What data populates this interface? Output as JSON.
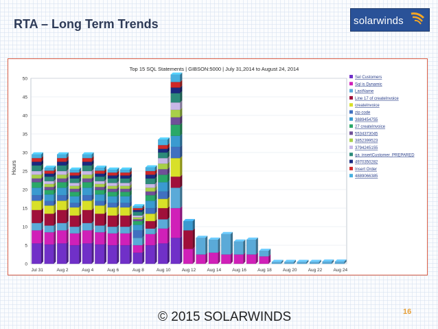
{
  "slide": {
    "title": "RTA – Long Term Trends",
    "logo_text": "solarwinds",
    "slide_number": "16",
    "footer": "© 2015 SOLARWINDS"
  },
  "colors": {
    "title": "#2d3a57",
    "frame_border": "#d55a43",
    "logo_bg": "#2a5298",
    "slide_number": "#e8a038"
  },
  "chart_data": {
    "type": "bar",
    "stacked": true,
    "title": "Top 15 SQL Statements   |   GIBSON:5000 | July 31,2014 to August 24, 2014",
    "xlabel": "",
    "ylabel": "Hours",
    "ylim": [
      0,
      50
    ],
    "yticks": [
      0,
      5,
      10,
      15,
      20,
      25,
      30,
      35,
      40,
      45,
      50
    ],
    "grid": true,
    "legend_position": "right",
    "x_tick_labels": [
      "Jul 31",
      "Aug 2",
      "Aug 4",
      "Aug 6",
      "Aug 8",
      "Aug 10",
      "Aug 12",
      "Aug 14",
      "Aug 16",
      "Aug 18",
      "Aug 20",
      "Aug 22",
      "Aug 24"
    ],
    "categories": [
      "Jul 31",
      "Aug 1",
      "Aug 2",
      "Aug 3",
      "Aug 4",
      "Aug 5",
      "Aug 6",
      "Aug 7",
      "Aug 8",
      "Aug 9",
      "Aug 10",
      "Aug 11",
      "Aug 12",
      "Aug 13",
      "Aug 14",
      "Aug 15",
      "Aug 16",
      "Aug 17",
      "Aug 18",
      "Aug 19",
      "Aug 20",
      "Aug 21",
      "Aug 22",
      "Aug 23",
      "Aug 24"
    ],
    "series": [
      {
        "name": "Sel Customers",
        "color": "#7030c8",
        "values": [
          5.5,
          5.2,
          5.5,
          5.0,
          5.5,
          5.2,
          5.0,
          5.0,
          3.0,
          5.0,
          5.5,
          7.0,
          0,
          0,
          0,
          0,
          0,
          0,
          0,
          0,
          0,
          0,
          0,
          0,
          0
        ]
      },
      {
        "name": "Sql is Dynamic",
        "color": "#d020b8",
        "values": [
          3.5,
          3.3,
          3.5,
          3.2,
          3.5,
          3.3,
          3.2,
          3.2,
          2.0,
          3.0,
          4.0,
          8.0,
          4.0,
          2.5,
          3.0,
          2.5,
          2.5,
          2.5,
          2.0,
          0,
          0,
          0,
          0,
          0,
          0
        ]
      },
      {
        "name": "LastName",
        "color": "#5aaad8",
        "values": [
          2.0,
          1.8,
          2.0,
          1.8,
          2.0,
          1.8,
          1.8,
          1.8,
          2.0,
          1.5,
          2.5,
          5.5,
          0,
          4.5,
          3.5,
          5.5,
          3.5,
          4.0,
          1.5,
          0.5,
          0.5,
          0.5,
          0.5,
          0.6,
          0.6
        ]
      },
      {
        "name": "Line 17 of createInvoice",
        "color": "#a0103a",
        "values": [
          3.5,
          3.2,
          3.5,
          3.0,
          3.5,
          3.2,
          3.0,
          3.0,
          0,
          2.0,
          3.0,
          3.0,
          5.0,
          0,
          0,
          0,
          0,
          0,
          0,
          0,
          0,
          0,
          0,
          0,
          0
        ]
      },
      {
        "name": "createInvoice",
        "color": "#d8e028",
        "values": [
          2.5,
          2.2,
          2.5,
          2.2,
          2.5,
          2.2,
          2.2,
          2.2,
          0,
          2.0,
          2.5,
          5.0,
          0,
          0,
          0,
          0,
          0,
          0,
          0,
          0,
          0,
          0,
          0,
          0,
          0
        ]
      },
      {
        "name": "zip code",
        "color": "#4070c0",
        "values": [
          1.5,
          1.2,
          1.5,
          1.2,
          1.5,
          1.2,
          1.2,
          1.2,
          2.0,
          1.5,
          2.0,
          3.0,
          0,
          0,
          0,
          0,
          0,
          0,
          0,
          0,
          0,
          0,
          0,
          0,
          0
        ]
      },
      {
        "name": "3889454755",
        "color": "#3a9ad0",
        "values": [
          2.0,
          1.8,
          2.0,
          1.8,
          2.0,
          1.8,
          1.8,
          1.8,
          1.5,
          2.0,
          2.5,
          3.0,
          2.5,
          0,
          0,
          0,
          0,
          0,
          0,
          0,
          0,
          0,
          0,
          0,
          0
        ]
      },
      {
        "name": "27 createInvoice",
        "color": "#2aa868",
        "values": [
          1.5,
          1.2,
          1.5,
          1.2,
          1.5,
          1.2,
          1.2,
          1.2,
          1.0,
          1.5,
          2.0,
          3.0,
          0,
          0,
          0,
          0,
          0,
          0,
          0,
          0,
          0,
          0,
          0,
          0,
          0
        ]
      },
      {
        "name": "5534373045",
        "color": "#705098",
        "values": [
          1.0,
          0.8,
          1.0,
          0.8,
          1.0,
          0.8,
          0.8,
          0.8,
          0.5,
          1.0,
          1.5,
          2.0,
          0,
          0,
          0,
          0,
          0,
          0,
          0,
          0,
          0,
          0,
          0,
          0,
          0
        ]
      },
      {
        "name": "3852399523",
        "color": "#a8d048",
        "values": [
          1.0,
          0.8,
          1.0,
          0.8,
          1.0,
          0.8,
          0.8,
          0.8,
          0.5,
          1.0,
          1.5,
          2.0,
          0,
          0,
          0,
          0,
          0,
          0,
          0,
          0,
          0,
          0,
          0,
          0,
          0
        ]
      },
      {
        "name": "3794245155",
        "color": "#c8b8e8",
        "values": [
          1.0,
          0.8,
          1.0,
          0.8,
          1.0,
          0.8,
          0.8,
          0.8,
          0.5,
          1.0,
          1.5,
          2.0,
          0,
          0,
          0,
          0,
          0,
          0,
          0,
          0,
          0,
          0,
          0,
          0,
          0
        ]
      },
      {
        "name": "qa_insertCustomer_PREPARED",
        "color": "#2c8a7a",
        "values": [
          1.5,
          1.2,
          1.5,
          1.2,
          1.5,
          1.2,
          1.2,
          1.2,
          1.0,
          1.5,
          1.5,
          2.5,
          0,
          0,
          0,
          0,
          0,
          0,
          0,
          0,
          0,
          0,
          0,
          0,
          0
        ]
      },
      {
        "name": "4970350282",
        "color": "#1a2a80",
        "values": [
          1.0,
          0.8,
          1.0,
          0.8,
          1.0,
          0.8,
          0.8,
          0.8,
          0.5,
          1.0,
          1.0,
          1.5,
          0,
          0,
          0,
          0,
          0,
          0,
          0,
          0,
          0,
          0,
          0,
          0,
          0
        ]
      },
      {
        "name": "Insert Order",
        "color": "#d02828",
        "values": [
          1.0,
          0.8,
          1.0,
          0.8,
          1.0,
          0.8,
          0.8,
          0.8,
          0.5,
          1.0,
          1.0,
          1.5,
          0,
          0,
          0,
          0,
          0,
          0,
          0,
          0,
          0,
          0,
          0,
          0,
          0
        ]
      },
      {
        "name": "4889066385",
        "color": "#48b0e0",
        "values": [
          1.0,
          0.8,
          1.0,
          0.8,
          1.0,
          0.8,
          0.8,
          0.8,
          0.5,
          1.0,
          1.5,
          2.0,
          0,
          0,
          0,
          0,
          0,
          0,
          0,
          0,
          0,
          0,
          0,
          0,
          0
        ]
      }
    ]
  }
}
